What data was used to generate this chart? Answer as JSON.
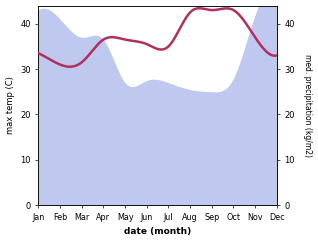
{
  "months": [
    "Jan",
    "Feb",
    "Mar",
    "Apr",
    "May",
    "Jun",
    "Jul",
    "Aug",
    "Sep",
    "Oct",
    "Nov",
    "Dec"
  ],
  "temp_data": [
    33.5,
    31.0,
    31.5,
    36.5,
    36.5,
    35.5,
    35.0,
    42.5,
    43.0,
    43.0,
    37.0,
    33.0
  ],
  "precip_data": [
    43.0,
    41.0,
    37.0,
    36.5,
    27.0,
    27.5,
    27.0,
    25.5,
    25.0,
    28.0,
    42.0,
    44.0
  ],
  "temp_color": "#b03060",
  "precip_fill_color": "#bfc8ef",
  "temp_ylim": [
    0,
    44
  ],
  "precip_ylim": [
    0,
    44
  ],
  "ylabel_left": "max temp (C)",
  "ylabel_right": "med. precipitation (kg/m2)",
  "xlabel": "date (month)",
  "yticks_left": [
    0,
    10,
    20,
    30,
    40
  ],
  "yticks_right": [
    0,
    10,
    20,
    30,
    40
  ],
  "temp_linewidth": 1.8,
  "figsize": [
    3.18,
    2.42
  ],
  "dpi": 100
}
